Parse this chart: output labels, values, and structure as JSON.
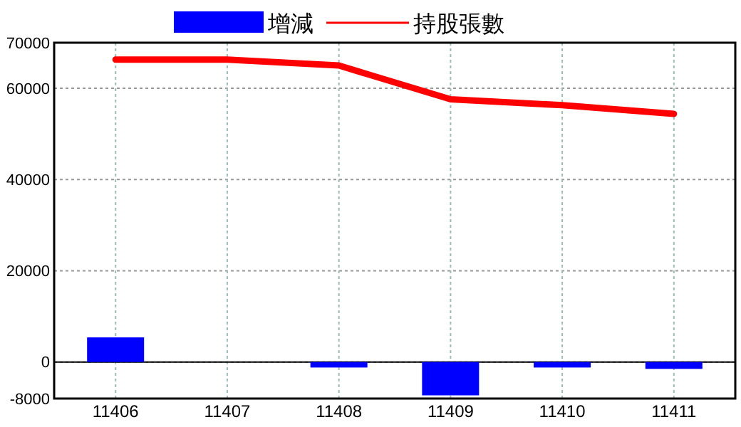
{
  "chart_data": {
    "type": "bar",
    "categories": [
      "11406",
      "11407",
      "11408",
      "11409",
      "11410",
      "11411"
    ],
    "series": [
      {
        "name": "增減",
        "color": "#0000ff",
        "values": [
          5400,
          0,
          -1200,
          -7300,
          -1200,
          -1500
        ]
      },
      {
        "name": "持股張數",
        "type": "line",
        "color": "#ff0000",
        "values": [
          66300,
          66300,
          65000,
          57600,
          56300,
          54400
        ]
      }
    ],
    "ylim": [
      -8000,
      70000
    ],
    "yticks": [
      -8000,
      0,
      20000,
      40000,
      60000,
      70000
    ],
    "grid": true,
    "legend": "top"
  }
}
